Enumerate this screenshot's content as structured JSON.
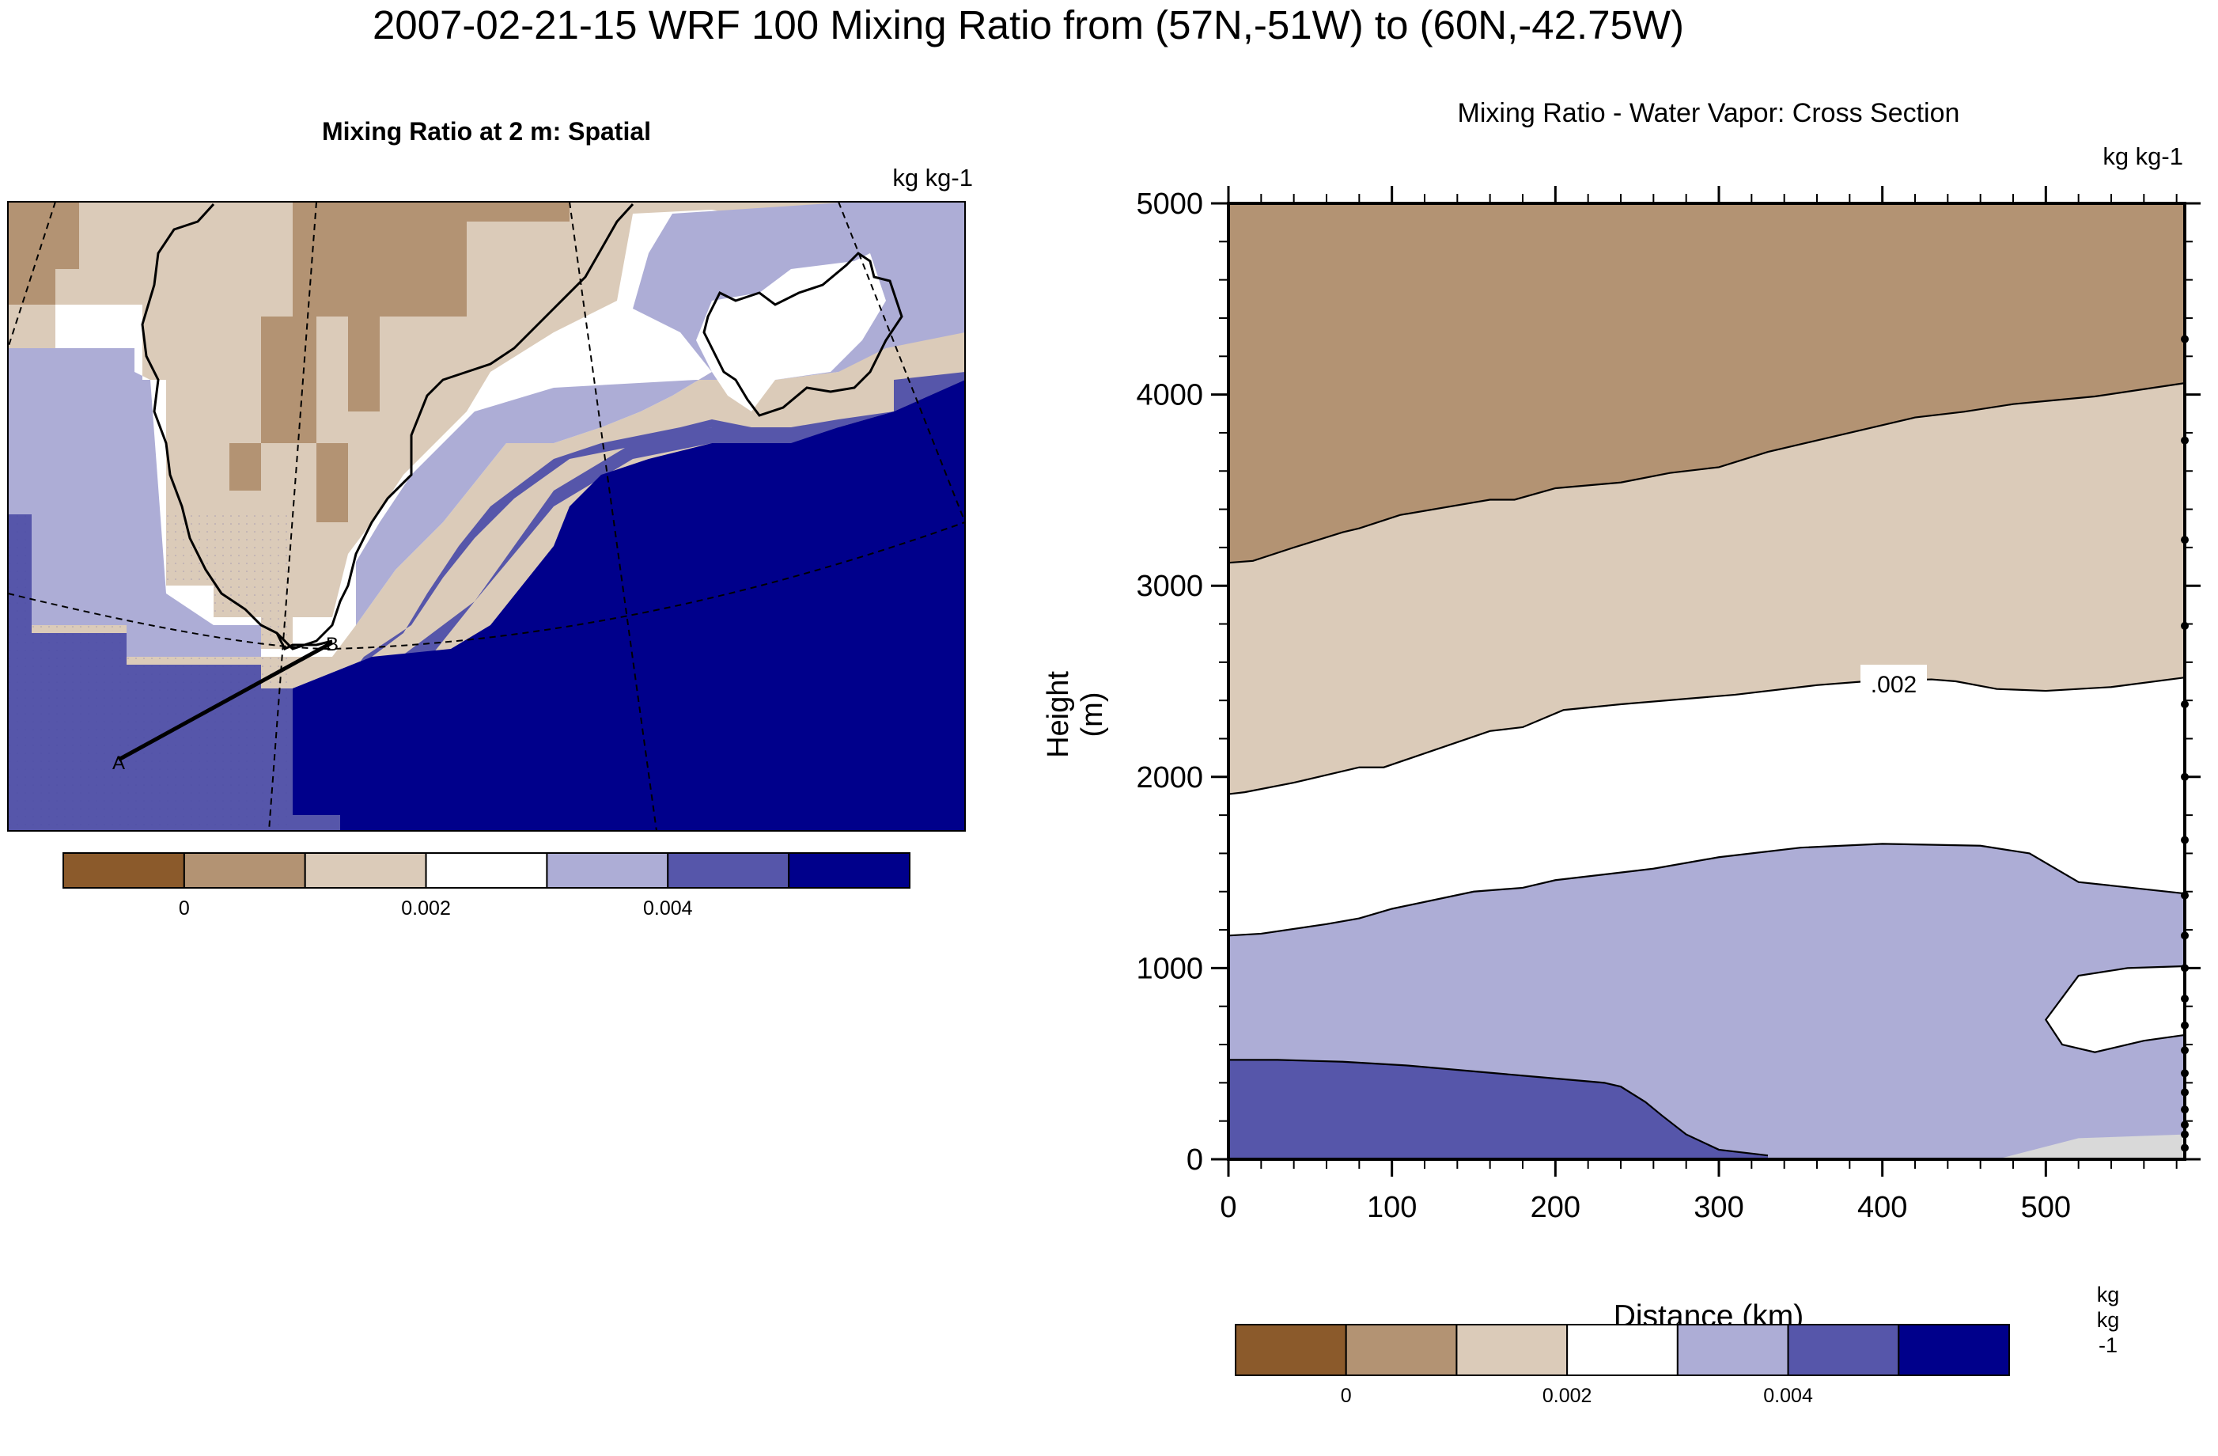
{
  "title": "2007-02-21-15 WRF 100 Mixing Ratio from (57N,-51W) to (60N,-42.75W)",
  "colors": {
    "palette": [
      "#8b5a2b",
      "#b39373",
      "#dbcbb9",
      "#ffffff",
      "#adadd6",
      "#5656aa",
      "#00008b"
    ],
    "line": "#000000",
    "near_surface_gray": "#d9d9d9"
  },
  "left_panel": {
    "title": "Mixing Ratio at 2 m: Spatial",
    "units": "kg kg-1",
    "point_labels": [
      "A",
      "B"
    ],
    "colorbar": {
      "tick_labels": [
        "0",
        "0.002",
        "0.004"
      ]
    }
  },
  "right_panel": {
    "title": "Mixing Ratio - Water Vapor: Cross Section",
    "units": "kg kg-1",
    "contour_label": ".002",
    "colorbar": {
      "tick_labels": [
        "0",
        "0.002",
        "0.004"
      ],
      "units_vertical": "kg kg-1"
    }
  },
  "chart_data": [
    {
      "type": "heatmap",
      "title": "Mixing Ratio at 2 m: Spatial",
      "units": "kg kg-1",
      "color_levels": [
        -0.001,
        0,
        0.001,
        0.002,
        0.003,
        0.004,
        0.005
      ],
      "colorbar_ticks": [
        "0",
        "0.002",
        "0.004"
      ],
      "cross_section_line": {
        "start": "A",
        "end": "B"
      }
    },
    {
      "type": "area",
      "title": "Mixing Ratio - Water Vapor: Cross Section",
      "xlabel": "Distance (km)",
      "ylabel": "Height (m)",
      "units": "kg kg-1",
      "xlim": [
        0,
        585
      ],
      "ylim": [
        0,
        5000
      ],
      "xticks": [
        0,
        100,
        200,
        300,
        400,
        500
      ],
      "yticks": [
        0,
        1000,
        2000,
        3000,
        4000,
        5000
      ],
      "color_levels": [
        -0.001,
        0,
        0.001,
        0.002,
        0.003,
        0.004,
        0.005
      ],
      "colorbar_ticks": [
        "0",
        "0.002",
        "0.004"
      ],
      "contour_label": ".002",
      "contours": [
        {
          "level": 0.001,
          "x": [
            0,
            15,
            40,
            70,
            80,
            105,
            160,
            175,
            200,
            240,
            270,
            300,
            330,
            380,
            420,
            450,
            480,
            530,
            585
          ],
          "y": [
            3120,
            3130,
            3200,
            3280,
            3300,
            3370,
            3450,
            3450,
            3510,
            3540,
            3590,
            3620,
            3700,
            3800,
            3880,
            3910,
            3950,
            3990,
            4060
          ]
        },
        {
          "level": 0.002,
          "x": [
            0,
            10,
            40,
            80,
            95,
            160,
            180,
            205,
            240,
            310,
            360,
            390,
            430,
            445,
            470,
            500,
            540,
            585
          ],
          "y": [
            1910,
            1920,
            1970,
            2050,
            2050,
            2240,
            2260,
            2350,
            2380,
            2430,
            2480,
            2500,
            2510,
            2500,
            2460,
            2450,
            2470,
            2520
          ]
        },
        {
          "level": 0.003,
          "x": [
            0,
            20,
            60,
            80,
            100,
            150,
            180,
            200,
            260,
            300,
            350,
            400,
            460,
            490,
            520,
            585
          ],
          "y": [
            1170,
            1180,
            1230,
            1260,
            1310,
            1400,
            1420,
            1460,
            1520,
            1580,
            1630,
            1650,
            1640,
            1600,
            1450,
            1390
          ]
        },
        {
          "level": 0.004,
          "x": [
            0,
            30,
            70,
            110,
            150,
            190,
            230,
            240,
            255,
            265,
            280,
            300,
            330
          ],
          "y": [
            520,
            520,
            510,
            490,
            460,
            430,
            400,
            380,
            300,
            230,
            130,
            50,
            20
          ]
        },
        {
          "level": 0.003,
          "closed_pocket": true,
          "x": [
            585,
            550,
            520,
            500,
            510,
            530,
            560,
            585
          ],
          "y": [
            1010,
            1000,
            960,
            730,
            600,
            560,
            620,
            650
          ]
        }
      ]
    }
  ]
}
